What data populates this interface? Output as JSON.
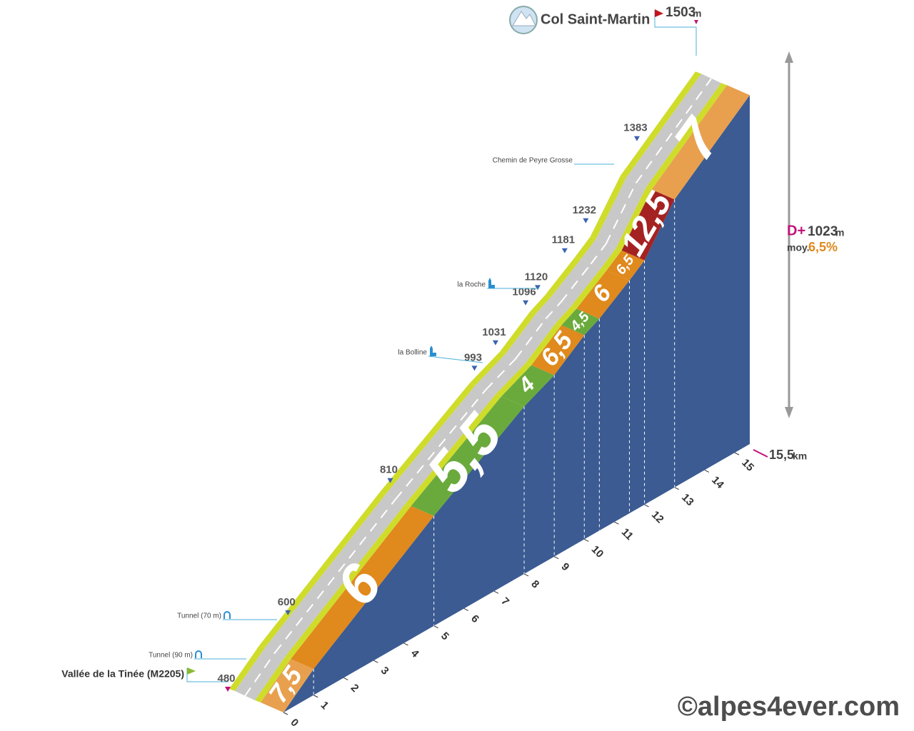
{
  "chart_data": {
    "type": "climb",
    "title": "Col Saint-Martin",
    "summit_elevation": 1503,
    "unit": "m",
    "start_label": "Vallée de la Tinée (M2205)",
    "ylim": [
      480,
      1503
    ],
    "xlim": [
      0,
      15.5
    ],
    "xticks": [
      0,
      1,
      2,
      3,
      4,
      5,
      6,
      7,
      8,
      9,
      10,
      11,
      12,
      13,
      14,
      15
    ],
    "distance": 15.5,
    "distance_label": "15,5",
    "distance_unit": "km",
    "gain_label": "D+",
    "gain": 1023,
    "average_label": "moy.",
    "average": 6.5,
    "average_value_label": "6,5%",
    "segments": [
      {
        "start": 0,
        "end": 1,
        "gradient": 7.5,
        "value_label": "7,5",
        "color": "#e8a04e"
      },
      {
        "start": 1,
        "end": 5,
        "gradient": 6,
        "value_label": "6",
        "color": "#e0891c"
      },
      {
        "start": 5,
        "end": 8,
        "gradient": 5.5,
        "value_label": "5,5",
        "color": "#6aaa3c"
      },
      {
        "start": 8,
        "end": 9,
        "gradient": 4,
        "value_label": "4",
        "color": "#6aaa3c"
      },
      {
        "start": 9,
        "end": 10,
        "gradient": 6.5,
        "value_label": "6,5",
        "color": "#e0891c"
      },
      {
        "start": 10,
        "end": 10.5,
        "gradient": 4.5,
        "value_label": "4,5",
        "color": "#6aaa3c"
      },
      {
        "start": 10.5,
        "end": 11.5,
        "gradient": 6,
        "value_label": "6",
        "color": "#e0891c"
      },
      {
        "start": 11.5,
        "end": 12,
        "gradient": 6.5,
        "value_label": "6,5",
        "color": "#e0891c"
      },
      {
        "start": 12,
        "end": 13,
        "gradient": 12.5,
        "value_label": "12,5",
        "color": "#a52222"
      },
      {
        "start": 13,
        "end": 15.5,
        "gradient": 7,
        "value_label": "7",
        "color": "#e8a04e"
      }
    ],
    "elevations": [
      {
        "km": 0,
        "elevation": 480
      },
      {
        "km": 2,
        "elevation": 600
      },
      {
        "km": 5.4,
        "elevation": 810
      },
      {
        "km": 8.2,
        "elevation": 993
      },
      {
        "km": 8.9,
        "elevation": 1031
      },
      {
        "km": 9.9,
        "elevation": 1096
      },
      {
        "km": 10.3,
        "elevation": 1120
      },
      {
        "km": 11.2,
        "elevation": 1181
      },
      {
        "km": 11.9,
        "elevation": 1232
      },
      {
        "km": 13.6,
        "elevation": 1383
      }
    ],
    "places": [
      "Tunnel (90 m)",
      "Tunnel (70 m)",
      "la Bolline",
      "la Roche",
      "Chemin de Peyre Grosse"
    ],
    "copyright": "©alpes4ever.com"
  }
}
